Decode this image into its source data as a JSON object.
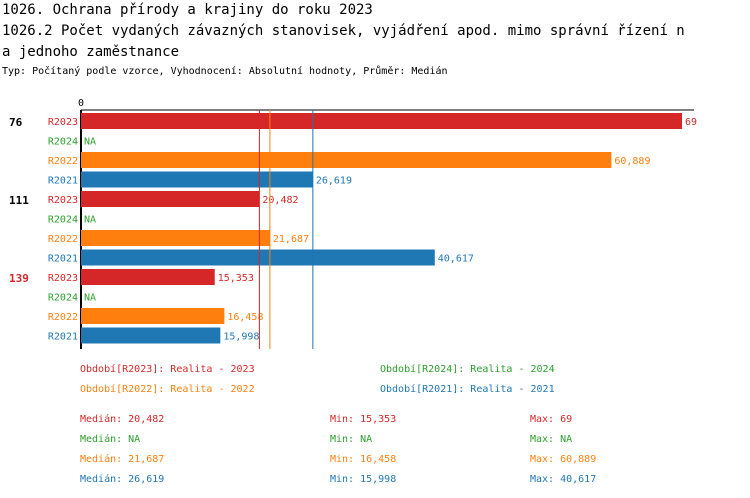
{
  "header": {
    "title_line1": "1026. Ochrana přírody a krajiny do roku 2023",
    "title_line2": "1026.2 Počet vydaných závazných stanovisek, vyjádření apod. mimo správní řízení n",
    "title_line3": "a jednoho zaměstnance",
    "subtitle": "Typ: Počítaný podle vzorce, Vyhodnocení: Absolutní hodnoty, Průměr: Medián"
  },
  "colors": {
    "R2023": "#d62728",
    "R2024": "#2ca02c",
    "R2022": "#ff7f0e",
    "R2021": "#1f77b4",
    "highlight_group": "#d62728"
  },
  "chart_data": {
    "type": "bar",
    "orientation": "horizontal",
    "axis_tick_label": "0",
    "xlim": [
      0,
      69
    ],
    "groups": [
      {
        "id": "76",
        "highlight": false,
        "bars": [
          {
            "series": "R2023",
            "value": 69,
            "label": "69"
          },
          {
            "series": "R2024",
            "value": null,
            "label": "NA"
          },
          {
            "series": "R2022",
            "value": 60.889,
            "label": "60,889"
          },
          {
            "series": "R2021",
            "value": 26.619,
            "label": "26,619"
          }
        ]
      },
      {
        "id": "111",
        "highlight": false,
        "bars": [
          {
            "series": "R2023",
            "value": 20.482,
            "label": "20,482"
          },
          {
            "series": "R2024",
            "value": null,
            "label": "NA"
          },
          {
            "series": "R2022",
            "value": 21.687,
            "label": "21,687"
          },
          {
            "series": "R2021",
            "value": 40.617,
            "label": "40,617"
          }
        ]
      },
      {
        "id": "139",
        "highlight": true,
        "bars": [
          {
            "series": "R2023",
            "value": 15.353,
            "label": "15,353"
          },
          {
            "series": "R2024",
            "value": null,
            "label": "NA"
          },
          {
            "series": "R2022",
            "value": 16.458,
            "label": "16,458"
          },
          {
            "series": "R2021",
            "value": 15.998,
            "label": "15,998"
          }
        ]
      }
    ],
    "median_lines": [
      {
        "series": "R2023",
        "value": 20.482
      },
      {
        "series": "R2022",
        "value": 21.687
      },
      {
        "series": "R2021",
        "value": 26.619
      }
    ]
  },
  "legend": [
    {
      "series": "R2023",
      "text": "Období[R2023]: Realita - 2023"
    },
    {
      "series": "R2024",
      "text": "Období[R2024]: Realita - 2024"
    },
    {
      "series": "R2022",
      "text": "Období[R2022]: Realita - 2022"
    },
    {
      "series": "R2021",
      "text": "Období[R2021]: Realita - 2021"
    }
  ],
  "stats": [
    {
      "series": "R2023",
      "median": "Medián: 20,482",
      "min": "Min: 15,353",
      "max": "Max: 69"
    },
    {
      "series": "R2024",
      "median": "Medián: NA",
      "min": "Min: NA",
      "max": "Max: NA"
    },
    {
      "series": "R2022",
      "median": "Medián: 21,687",
      "min": "Min: 16,458",
      "max": "Max: 60,889"
    },
    {
      "series": "R2021",
      "median": "Medián: 26,619",
      "min": "Min: 15,998",
      "max": "Max: 40,617"
    }
  ]
}
